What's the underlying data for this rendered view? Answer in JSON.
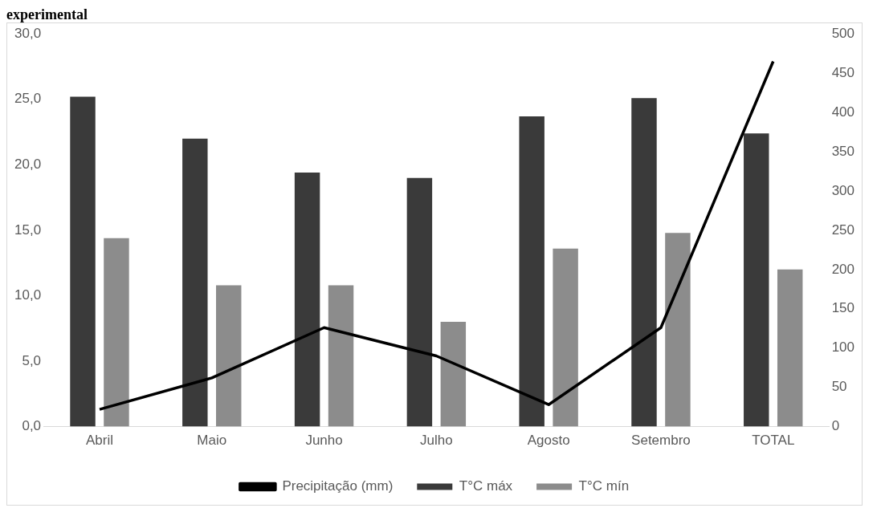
{
  "chart_data": {
    "type": "bar",
    "title": "experimental",
    "categories": [
      "Abril",
      "Maio",
      "Junho",
      "Julho",
      "Agosto",
      "Setembro",
      "TOTAL"
    ],
    "series": [
      {
        "name": "T°C máx",
        "color": "#3a3a3a",
        "values": [
          25.2,
          22.0,
          19.4,
          19.0,
          23.7,
          25.1,
          22.4
        ]
      },
      {
        "name": "T°C mín",
        "color": "#8c8c8c",
        "values": [
          14.4,
          10.8,
          10.8,
          8.0,
          13.6,
          14.8,
          12.0
        ]
      },
      {
        "name": "Precipitação (mm)",
        "type": "line",
        "axis": "y2",
        "color": "#000000",
        "values": [
          22,
          62,
          126,
          90,
          28,
          126,
          465
        ]
      }
    ],
    "ylim": [
      0,
      30
    ],
    "yticks": [
      {
        "value": 0,
        "label": "0,0"
      },
      {
        "value": 5,
        "label": "5,0"
      },
      {
        "value": 10,
        "label": "10,0"
      },
      {
        "value": 15,
        "label": "15,0"
      },
      {
        "value": 20,
        "label": "20,0"
      },
      {
        "value": 25,
        "label": "25,0"
      },
      {
        "value": 30,
        "label": "30,0"
      }
    ],
    "y2lim": [
      0,
      500
    ],
    "y2ticks": [
      0,
      50,
      100,
      150,
      200,
      250,
      300,
      350,
      400,
      450,
      500
    ],
    "grid": false,
    "legend": "bottom",
    "marker": "none"
  }
}
